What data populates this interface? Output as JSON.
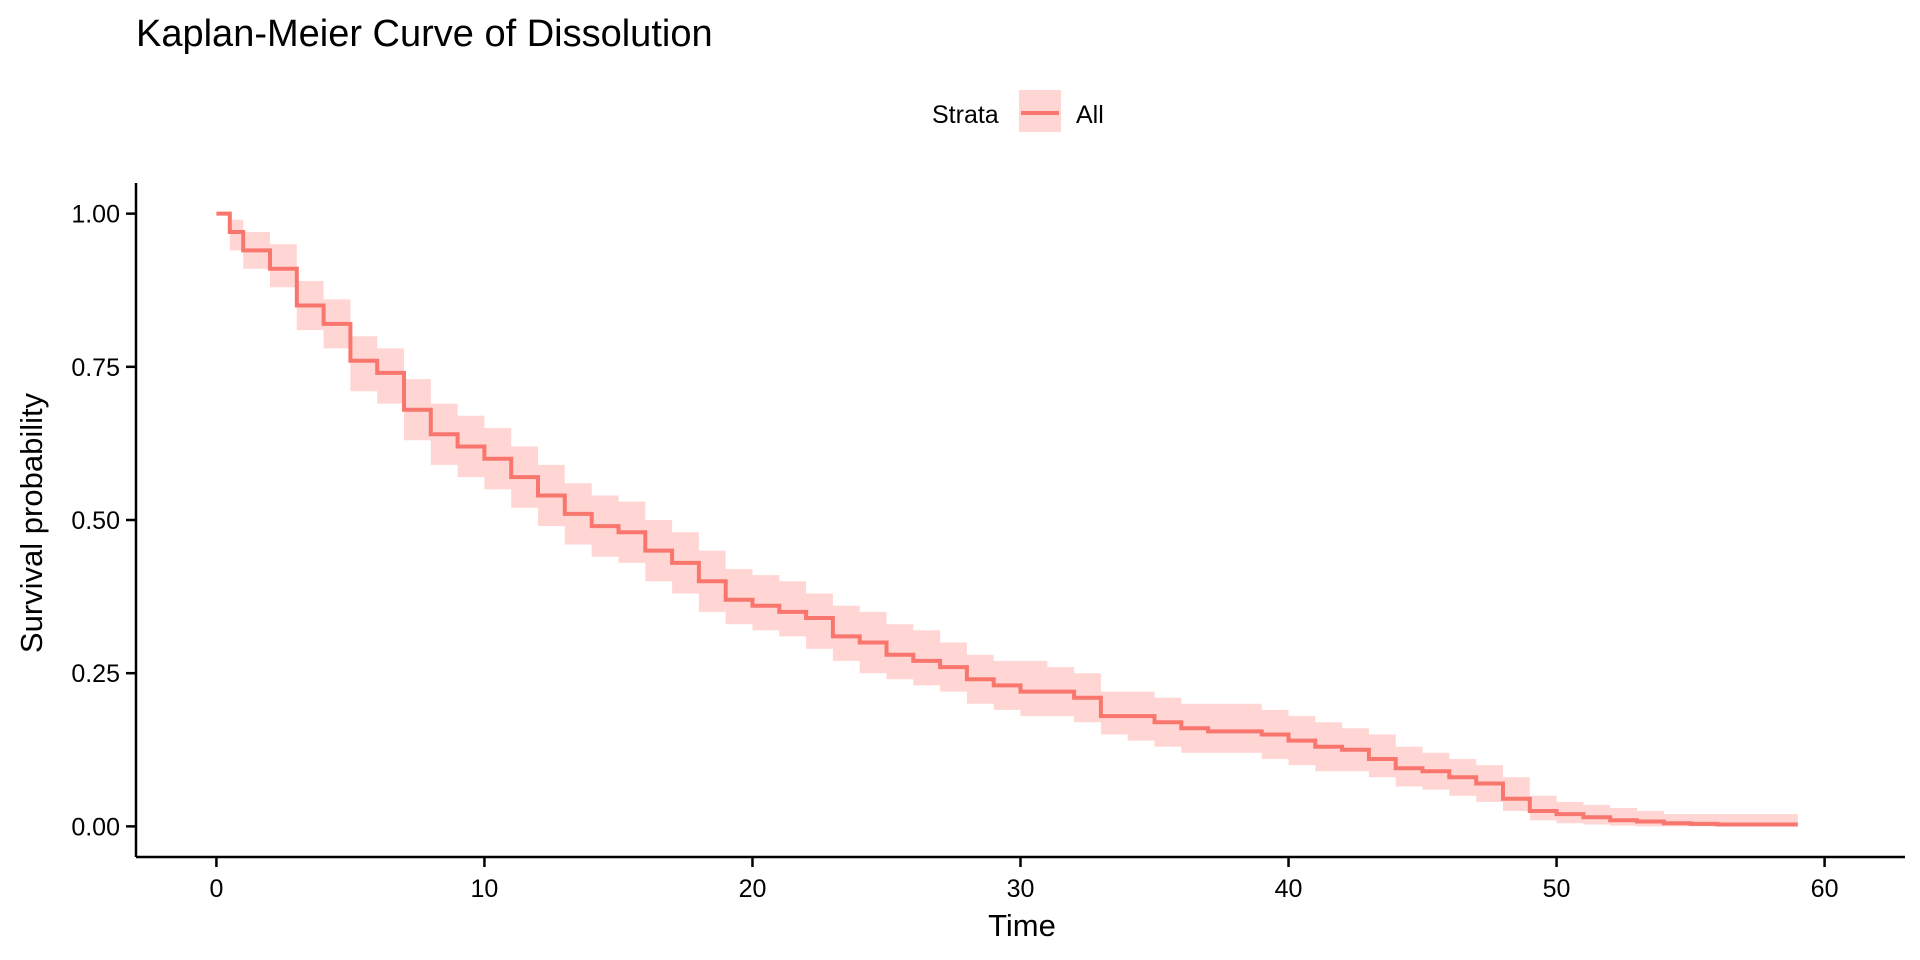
{
  "chart_data": {
    "type": "line",
    "title": "Kaplan-Meier Curve of Dissolution",
    "xlabel": "Time",
    "ylabel": "Survival probability",
    "xlim": [
      -3,
      63
    ],
    "ylim": [
      -0.05,
      1.05
    ],
    "x_ticks": [
      0,
      10,
      20,
      30,
      40,
      50,
      60
    ],
    "x_tick_labels": [
      "0",
      "10",
      "20",
      "30",
      "40",
      "50",
      "60"
    ],
    "y_ticks": [
      0,
      0.25,
      0.5,
      0.75,
      1
    ],
    "y_tick_labels": [
      "0.00",
      "0.25",
      "0.50",
      "0.75",
      "1.00"
    ],
    "grid": false,
    "legend": {
      "title": "Strata",
      "position": "top-center"
    },
    "series": [
      {
        "name": "All",
        "color": "#F8766D",
        "band_color": "#FFD6D3",
        "step": true,
        "x": [
          0,
          0.5,
          1,
          2,
          3,
          4,
          5,
          6,
          7,
          8,
          9,
          10,
          11,
          12,
          13,
          14,
          15,
          16,
          17,
          18,
          19,
          20,
          21,
          22,
          23,
          24,
          25,
          26,
          27,
          28,
          29,
          30,
          31,
          32,
          33,
          34,
          35,
          36,
          37,
          38,
          39,
          40,
          41,
          42,
          43,
          44,
          45,
          46,
          47,
          48,
          49,
          50,
          51,
          52,
          53,
          54,
          55,
          56,
          57,
          58,
          59
        ],
        "y": [
          1.0,
          0.97,
          0.94,
          0.91,
          0.85,
          0.82,
          0.76,
          0.74,
          0.68,
          0.64,
          0.62,
          0.6,
          0.57,
          0.54,
          0.51,
          0.49,
          0.48,
          0.45,
          0.43,
          0.4,
          0.37,
          0.36,
          0.35,
          0.34,
          0.31,
          0.3,
          0.28,
          0.27,
          0.26,
          0.24,
          0.23,
          0.22,
          0.22,
          0.21,
          0.18,
          0.18,
          0.17,
          0.16,
          0.155,
          0.155,
          0.15,
          0.14,
          0.13,
          0.125,
          0.11,
          0.095,
          0.09,
          0.08,
          0.07,
          0.045,
          0.025,
          0.02,
          0.015,
          0.01,
          0.008,
          0.005,
          0.004,
          0.003,
          0.003,
          0.003,
          0.003
        ],
        "lower": [
          1.0,
          0.94,
          0.91,
          0.88,
          0.81,
          0.78,
          0.71,
          0.69,
          0.63,
          0.59,
          0.57,
          0.55,
          0.52,
          0.49,
          0.46,
          0.44,
          0.43,
          0.4,
          0.38,
          0.35,
          0.33,
          0.32,
          0.31,
          0.29,
          0.27,
          0.25,
          0.24,
          0.23,
          0.22,
          0.2,
          0.19,
          0.18,
          0.18,
          0.17,
          0.15,
          0.14,
          0.13,
          0.12,
          0.12,
          0.12,
          0.11,
          0.1,
          0.09,
          0.09,
          0.08,
          0.065,
          0.06,
          0.05,
          0.04,
          0.025,
          0.01,
          0.005,
          0.003,
          0.001,
          0,
          0,
          0,
          0,
          0,
          0,
          0
        ],
        "upper": [
          1.0,
          0.99,
          0.97,
          0.95,
          0.89,
          0.86,
          0.8,
          0.78,
          0.73,
          0.69,
          0.67,
          0.65,
          0.62,
          0.59,
          0.56,
          0.54,
          0.53,
          0.5,
          0.48,
          0.45,
          0.42,
          0.41,
          0.4,
          0.38,
          0.36,
          0.35,
          0.33,
          0.32,
          0.3,
          0.28,
          0.27,
          0.27,
          0.26,
          0.25,
          0.22,
          0.22,
          0.21,
          0.2,
          0.2,
          0.2,
          0.19,
          0.18,
          0.17,
          0.16,
          0.15,
          0.13,
          0.12,
          0.11,
          0.1,
          0.08,
          0.05,
          0.04,
          0.035,
          0.03,
          0.025,
          0.02,
          0.02,
          0.02,
          0.02,
          0.02,
          0.02
        ]
      }
    ]
  }
}
